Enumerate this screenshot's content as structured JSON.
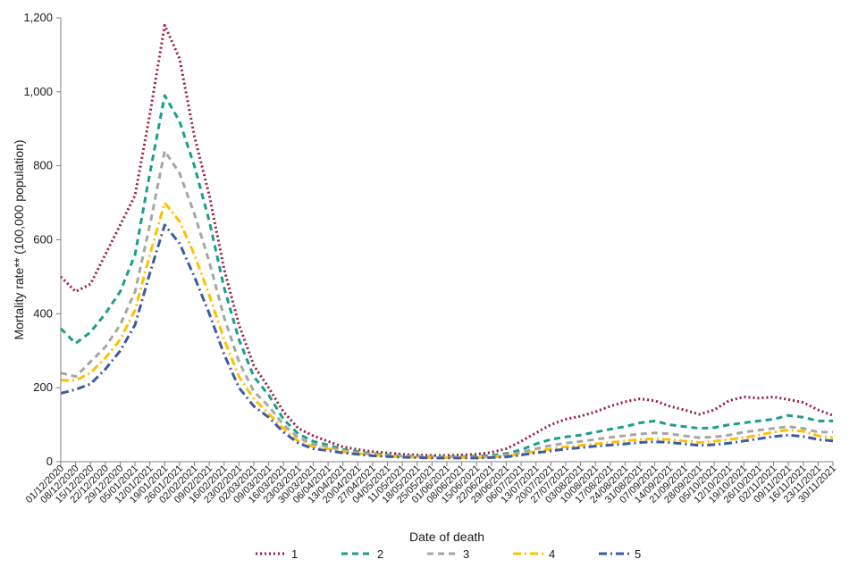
{
  "chart_data": {
    "type": "line",
    "title": "",
    "xlabel": "Date of death",
    "ylabel": "Mortality rate** (100,000 population)",
    "ylim": [
      0,
      1200
    ],
    "yticks": [
      0,
      200,
      400,
      600,
      800,
      1000,
      1200
    ],
    "ytick_labels": [
      "0",
      "200",
      "400",
      "600",
      "800",
      "1,000",
      "1,200"
    ],
    "grid": false,
    "legend_position": "bottom",
    "x_tick_labels": [
      "01/12/2020",
      "08/12/2020",
      "15/12/2020",
      "22/12/2020",
      "29/12/2020",
      "05/01/2021",
      "12/01/2021",
      "19/01/2021",
      "26/01/2021",
      "02/02/2021",
      "09/02/2021",
      "16/02/2021",
      "23/02/2021",
      "02/03/2021",
      "09/03/2021",
      "16/03/2021",
      "23/03/2021",
      "30/03/2021",
      "06/04/2021",
      "13/04/2021",
      "20/04/2021",
      "27/04/2021",
      "04/05/2021",
      "11/05/2021",
      "18/05/2021",
      "25/05/2021",
      "01/06/2021",
      "08/06/2021",
      "15/06/2021",
      "22/06/2021",
      "29/06/2021",
      "06/07/2021",
      "13/07/2021",
      "20/07/2021",
      "27/07/2021",
      "03/08/2021",
      "10/08/2021",
      "17/08/2021",
      "24/08/2021",
      "31/08/2021",
      "07/09/2021",
      "14/09/2021",
      "21/09/2021",
      "28/09/2021",
      "05/10/2021",
      "12/10/2021",
      "19/10/2021",
      "26/10/2021",
      "02/11/2021",
      "09/11/2021",
      "16/11/2021",
      "23/11/2021",
      "30/11/2021"
    ],
    "series": [
      {
        "name": "1",
        "color": "#9c1a3a",
        "dash": "dotted",
        "values": [
          500,
          460,
          480,
          560,
          640,
          720,
          940,
          1180,
          1090,
          880,
          720,
          520,
          370,
          260,
          200,
          135,
          90,
          70,
          55,
          40,
          33,
          27,
          24,
          20,
          18,
          17,
          17,
          18,
          20,
          25,
          35,
          55,
          78,
          100,
          115,
          123,
          135,
          150,
          162,
          170,
          165,
          150,
          140,
          128,
          140,
          165,
          175,
          172,
          175,
          168,
          160,
          140,
          125
        ]
      },
      {
        "name": "2",
        "color": "#1a9e8c",
        "dash": "dashed",
        "values": [
          360,
          320,
          350,
          400,
          460,
          560,
          780,
          990,
          920,
          800,
          650,
          470,
          330,
          230,
          180,
          115,
          75,
          55,
          45,
          33,
          27,
          22,
          19,
          16,
          15,
          14,
          14,
          14,
          15,
          17,
          22,
          32,
          48,
          60,
          67,
          72,
          80,
          88,
          95,
          105,
          110,
          100,
          95,
          90,
          92,
          100,
          105,
          110,
          115,
          125,
          120,
          110,
          110
        ]
      },
      {
        "name": "3",
        "color": "#a6a6a6",
        "dash": "dashed",
        "values": [
          240,
          230,
          270,
          310,
          370,
          460,
          640,
          840,
          780,
          670,
          540,
          390,
          270,
          190,
          150,
          100,
          65,
          47,
          40,
          30,
          24,
          20,
          17,
          15,
          14,
          13,
          13,
          12,
          12,
          14,
          18,
          25,
          35,
          44,
          50,
          55,
          60,
          66,
          70,
          75,
          78,
          75,
          70,
          65,
          67,
          72,
          80,
          85,
          90,
          95,
          90,
          80,
          80
        ]
      },
      {
        "name": "4",
        "color": "#ffc000",
        "dash": "dashdot",
        "values": [
          220,
          220,
          240,
          280,
          330,
          410,
          560,
          700,
          650,
          560,
          450,
          330,
          230,
          170,
          130,
          90,
          55,
          40,
          35,
          27,
          22,
          18,
          15,
          13,
          12,
          11,
          11,
          11,
          11,
          12,
          15,
          20,
          28,
          34,
          40,
          44,
          48,
          52,
          56,
          60,
          62,
          60,
          56,
          52,
          55,
          60,
          65,
          72,
          80,
          86,
          82,
          70,
          65
        ]
      },
      {
        "name": "5",
        "color": "#3b5ba5",
        "dash": "dashdot",
        "values": [
          185,
          195,
          210,
          250,
          300,
          370,
          510,
          640,
          590,
          500,
          400,
          290,
          200,
          150,
          120,
          80,
          50,
          35,
          30,
          24,
          20,
          16,
          14,
          12,
          11,
          10,
          10,
          10,
          10,
          11,
          13,
          18,
          24,
          29,
          34,
          38,
          42,
          45,
          48,
          52,
          54,
          52,
          48,
          44,
          46,
          50,
          56,
          62,
          68,
          72,
          68,
          60,
          56
        ]
      }
    ]
  }
}
